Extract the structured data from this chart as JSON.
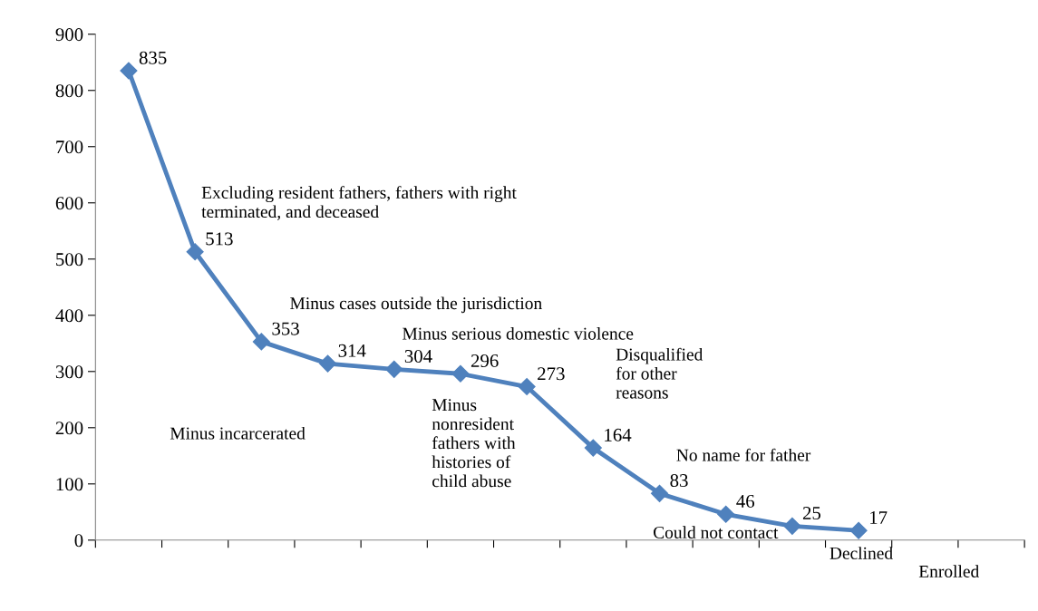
{
  "chart_data": {
    "type": "line",
    "categories": [
      null,
      null,
      null,
      null,
      null,
      null,
      null,
      null,
      null,
      null,
      null,
      null,
      null,
      null
    ],
    "series": [
      {
        "color": "#4f81bd",
        "values": [
          835,
          513,
          353,
          314,
          304,
          296,
          273,
          164,
          83,
          46,
          25,
          17,
          null,
          null
        ]
      }
    ],
    "ylim": [
      0,
      900
    ],
    "yticks": [
      0,
      100,
      200,
      300,
      400,
      500,
      600,
      700,
      800,
      900
    ],
    "marker": "diamond",
    "line_style": "solid",
    "grid": false,
    "legend": false,
    "data_labels": true,
    "annotations": [
      "Excluding resident fathers, fathers with right\nterminated, and deceased",
      "Minus incarcerated",
      "Minus cases outside the jurisdiction",
      "Minus serious domestic violence",
      "Minus\nnonresident\nfathers with\nhistories of\nchild abuse",
      "Disqualified\nfor other\nreasons",
      "No name for father",
      "Could not contact",
      "Declined",
      "Enrolled"
    ]
  }
}
